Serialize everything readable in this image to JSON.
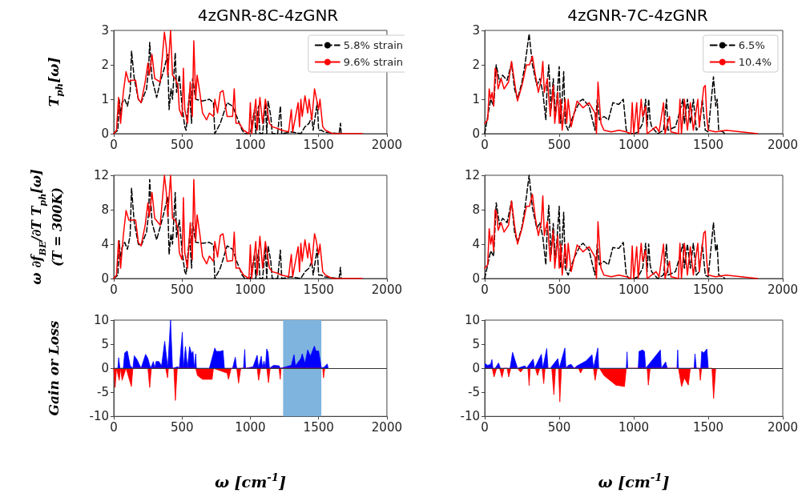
{
  "chart_data": [
    {
      "type": "line",
      "title": "4zGNR-8C-4zGNR",
      "ylabel": "T$_{ph}$[ω]",
      "xlim": [
        0,
        2000
      ],
      "xticks": [
        0,
        500,
        1000,
        1500,
        2000
      ],
      "ylim": [
        0,
        3
      ],
      "yticks": [
        0,
        1,
        2,
        3
      ],
      "legend": "top right",
      "series": [
        {
          "name": "5.8% strain",
          "color": "#000000",
          "line_style": "dashed",
          "x": [
            0,
            30,
            40,
            50,
            60,
            80,
            100,
            120,
            130,
            150,
            180,
            200,
            240,
            255,
            263,
            280,
            314,
            340,
            370,
            394,
            405,
            419,
            430,
            450,
            460,
            480,
            500,
            520,
            530,
            540,
            555,
            570,
            577,
            600,
            650,
            700,
            730,
            740,
            780,
            830,
            870,
            900,
            940,
            960,
            1000,
            1030,
            1040,
            1060,
            1070,
            1090,
            1110,
            1120,
            1130,
            1150,
            1160,
            1200,
            1220,
            1230,
            1300,
            1370,
            1400,
            1430,
            1450,
            1460,
            1490,
            1500,
            1520,
            1540,
            1650,
            1660,
            1665
          ],
          "values": [
            0,
            0.1,
            1.0,
            0.5,
            0.9,
            1.0,
            0.8,
            1.2,
            2.4,
            1.6,
            1.0,
            0.9,
            1.3,
            1.9,
            2.65,
            1.6,
            1.05,
            1.5,
            1.9,
            2.3,
            0.7,
            1.3,
            1.0,
            2.35,
            1.2,
            1.7,
            0.8,
            0.2,
            0.1,
            0.6,
            1.2,
            0.3,
            1.6,
            1.0,
            0.95,
            1.0,
            0.9,
            0,
            0.3,
            0.9,
            0.8,
            0.5,
            0.1,
            0,
            0,
            0.7,
            0,
            0.8,
            0,
            0,
            0.9,
            0,
            0.95,
            0.5,
            0,
            0,
            0.8,
            0,
            0.05,
            0,
            0.2,
            0.3,
            0.5,
            0.1,
            0.9,
            0.1,
            0.1,
            0.05,
            0,
            0.3,
            0
          ]
        },
        {
          "name": "9.6% strain",
          "color": "#ff0000",
          "line_style": "solid",
          "x": [
            0,
            20,
            35,
            50,
            70,
            90,
            110,
            130,
            160,
            180,
            200,
            230,
            250,
            260,
            280,
            300,
            340,
            371,
            385,
            395,
            416,
            430,
            450,
            470,
            480,
            500,
            510,
            520,
            540,
            560,
            575,
            586,
            600,
            610,
            630,
            650,
            680,
            700,
            730,
            740,
            760,
            780,
            800,
            830,
            870,
            882,
            895,
            920,
            950,
            990,
            1000,
            1010,
            1040,
            1050,
            1070,
            1090,
            1110,
            1140,
            1160,
            1200,
            1230,
            1280,
            1300,
            1310,
            1350,
            1360,
            1370,
            1380,
            1400,
            1420,
            1430,
            1450,
            1470,
            1480,
            1500,
            1510,
            1530,
            1550,
            1600,
            1820
          ],
          "values": [
            0,
            0.1,
            1.05,
            0.3,
            1.2,
            1.8,
            1.5,
            1.55,
            1.55,
            1.0,
            0.9,
            1.5,
            2.05,
            1.7,
            2.3,
            1.6,
            1.5,
            2.95,
            2.5,
            1.7,
            3.0,
            1.7,
            1.6,
            1.4,
            0.7,
            0.5,
            1.9,
            0.7,
            0.3,
            1.5,
            0.5,
            2.7,
            1.0,
            1.7,
            1.2,
            0.6,
            0.4,
            0.6,
            0.5,
            1.0,
            0.6,
            1.2,
            1.25,
            0.5,
            0.5,
            1.3,
            0.3,
            0.3,
            0.1,
            0,
            0.9,
            0,
            1.0,
            0.1,
            1.05,
            0.3,
            1.0,
            0.3,
            0.2,
            0.15,
            0.1,
            0.05,
            0.7,
            0.05,
            0.9,
            0.2,
            1.0,
            0.5,
            1.1,
            0.6,
            1.0,
            0.4,
            1.3,
            1.1,
            0.7,
            1.0,
            0.2,
            0.1,
            0,
            0
          ]
        }
      ]
    },
    {
      "type": "line",
      "title": "4zGNR-7C-4zGNR",
      "xlim": [
        0,
        2000
      ],
      "xticks": [
        0,
        500,
        1000,
        1500,
        2000
      ],
      "ylim": [
        0,
        3
      ],
      "yticks": [
        0,
        1,
        2,
        3
      ],
      "legend": "top right",
      "series": [
        {
          "name": "6.5%",
          "color": "#000000",
          "line_style": "dashed",
          "x": [
            0,
            20,
            40,
            60,
            77,
            100,
            120,
            150,
            180,
            200,
            220,
            250,
            270,
            298,
            320,
            350,
            370,
            390,
            410,
            420,
            430,
            445,
            460,
            475,
            500,
            510,
            530,
            540,
            560,
            600,
            640,
            660,
            700,
            740,
            755,
            770,
            800,
            830,
            860,
            900,
            930,
            950,
            970,
            1000,
            1030,
            1060,
            1080,
            1090,
            1100,
            1110,
            1120,
            1160,
            1200,
            1220,
            1230,
            1280,
            1300,
            1330,
            1340,
            1360,
            1380,
            1400,
            1420,
            1440,
            1460,
            1480,
            1500,
            1535,
            1550,
            1560,
            1570,
            1600,
            1610
          ],
          "values": [
            0,
            0.5,
            1.0,
            0.8,
            2.0,
            1.5,
            1.7,
            1.55,
            2.05,
            1.3,
            1.0,
            1.5,
            2.0,
            2.9,
            2.0,
            1.4,
            1.6,
            1.2,
            0.4,
            1.5,
            2.0,
            0.7,
            1.6,
            0.5,
            1.95,
            0.3,
            1.8,
            0.3,
            0.1,
            0.6,
            0.95,
            1.0,
            0.8,
            0.1,
            1.0,
            0.4,
            0.5,
            0.4,
            0.9,
            0.85,
            1.0,
            0.1,
            0,
            0,
            0.05,
            0.3,
            1.0,
            0.2,
            1.0,
            0.4,
            0.2,
            0,
            0.1,
            1.0,
            0.1,
            0.2,
            0.5,
            1.0,
            0.3,
            1.0,
            0.3,
            1.0,
            0.1,
            0.2,
            1.0,
            0.1,
            0.05,
            1.65,
            0.8,
            1.0,
            0.1,
            0.05,
            0
          ]
        },
        {
          "name": "10.4%",
          "color": "#ff0000",
          "line_style": "solid",
          "x": [
            0,
            20,
            30,
            40,
            50,
            60,
            70,
            80,
            90,
            110,
            130,
            160,
            180,
            200,
            220,
            250,
            280,
            300,
            320,
            340,
            360,
            380,
            390,
            400,
            420,
            440,
            460,
            470,
            490,
            500,
            510,
            520,
            540,
            550,
            560,
            580,
            620,
            660,
            700,
            740,
            750,
            760,
            780,
            800,
            850,
            900,
            950,
            980,
            990,
            1000,
            1020,
            1030,
            1050,
            1060,
            1080,
            1090,
            1150,
            1170,
            1200,
            1210,
            1240,
            1250,
            1300,
            1310,
            1320,
            1340,
            1360,
            1380,
            1400,
            1430,
            1440,
            1470,
            1480,
            1490,
            1500,
            1550,
            1620,
            1830
          ],
          "values": [
            0.3,
            0.4,
            1.3,
            1.0,
            1.2,
            0.8,
            1.9,
            1.8,
            1.3,
            1.6,
            1.3,
            1.5,
            2.1,
            1.5,
            0.95,
            1.4,
            2.0,
            2.0,
            2.25,
            1.7,
            1.2,
            1.6,
            2.1,
            1.2,
            1.6,
            0.5,
            1.4,
            0.3,
            1.2,
            0.3,
            1.0,
            0.1,
            1.0,
            0.3,
            1.0,
            0.2,
            0.95,
            0.75,
            0.9,
            0.6,
            0,
            1.5,
            0.3,
            0.1,
            0.05,
            0.1,
            0.05,
            0,
            0.9,
            0,
            0.9,
            0,
            1.0,
            0.5,
            0.8,
            0,
            0.2,
            0.05,
            0.9,
            0,
            0.5,
            0.05,
            0,
            1.0,
            0,
            1.0,
            0.1,
            0.9,
            0.1,
            1.0,
            0.2,
            1.35,
            1.4,
            0.5,
            0.1,
            0.05,
            0.1,
            0
          ]
        }
      ]
    },
    {
      "type": "line",
      "ylabel": "ω ∂f$_{BE}$/∂T T$_{ph}$[ω]\n(T = 300K)",
      "xlim": [
        0,
        2000
      ],
      "xticks": [
        0,
        500,
        1000,
        1500,
        2000
      ],
      "ylim": [
        0,
        12
      ],
      "yticks": [
        0,
        4,
        8,
        12
      ],
      "series": [
        {
          "color": "#000000",
          "line_style": "dashed",
          "x": [
            0,
            30,
            40,
            50,
            60,
            80,
            100,
            120,
            130,
            150,
            180,
            200,
            240,
            255,
            263,
            280,
            314,
            340,
            370,
            394,
            405,
            419,
            430,
            450,
            460,
            480,
            500,
            520,
            530,
            540,
            555,
            570,
            577,
            600,
            650,
            700,
            730,
            740,
            780,
            830,
            870,
            900,
            940,
            960,
            1000,
            1030,
            1040,
            1060,
            1070,
            1090,
            1110,
            1120,
            1130,
            1150,
            1160,
            1200,
            1220,
            1230,
            1300,
            1370,
            1400,
            1430,
            1450,
            1460,
            1490,
            1500,
            1520,
            1540,
            1650,
            1660,
            1665
          ],
          "values": [
            0,
            0.4,
            4.4,
            2,
            3.6,
            4.2,
            3.4,
            5,
            10.5,
            6.5,
            4,
            3.8,
            5.4,
            7.5,
            11.5,
            6.5,
            4.5,
            6,
            7.8,
            9.5,
            2.8,
            5.2,
            4,
            10,
            4.8,
            6.8,
            3.2,
            0.8,
            0.5,
            2.4,
            4.8,
            1.2,
            6.5,
            4.2,
            4.1,
            4.2,
            3.9,
            0,
            1.2,
            3.8,
            3.4,
            2,
            0.4,
            0,
            0,
            2.8,
            0,
            3.3,
            0,
            0,
            3.7,
            0,
            3.8,
            2,
            0,
            0,
            3.3,
            0,
            0.2,
            0,
            0.8,
            1.2,
            2,
            0.4,
            3.5,
            0.4,
            0.4,
            0.2,
            0,
            1.3,
            0
          ]
        },
        {
          "color": "#ff0000",
          "line_style": "solid",
          "x": [
            0,
            20,
            35,
            50,
            70,
            90,
            110,
            130,
            160,
            180,
            200,
            230,
            250,
            260,
            280,
            300,
            340,
            371,
            385,
            395,
            416,
            430,
            450,
            470,
            480,
            500,
            510,
            520,
            540,
            560,
            575,
            586,
            600,
            610,
            630,
            650,
            680,
            700,
            730,
            740,
            760,
            780,
            800,
            830,
            870,
            882,
            895,
            920,
            950,
            990,
            1000,
            1010,
            1040,
            1050,
            1070,
            1090,
            1110,
            1140,
            1160,
            1200,
            1230,
            1280,
            1300,
            1310,
            1350,
            1360,
            1370,
            1380,
            1400,
            1420,
            1430,
            1450,
            1470,
            1480,
            1500,
            1510,
            1530,
            1550,
            1600,
            1820
          ],
          "values": [
            0,
            0.4,
            4.4,
            1.2,
            5,
            7.9,
            6.8,
            6.8,
            6.8,
            4.2,
            3.8,
            6.2,
            8.8,
            7.2,
            10,
            7,
            6.2,
            12,
            10,
            7.2,
            12,
            7,
            6.8,
            5.8,
            3,
            2.2,
            9.4,
            3,
            1.2,
            6.5,
            2.2,
            11.5,
            4.3,
            7.4,
            5.2,
            2.6,
            1.7,
            2.6,
            2,
            4.3,
            2.5,
            5,
            5.2,
            2,
            2.1,
            5.4,
            1.2,
            1.2,
            0.4,
            0,
            3.9,
            0,
            4.3,
            0.4,
            4.9,
            1.2,
            4.3,
            1.2,
            0.8,
            0.6,
            0.4,
            0.2,
            2.8,
            0.2,
            3.7,
            0.8,
            4.1,
            2,
            4.5,
            2.4,
            4.1,
            1.6,
            5.2,
            4.6,
            2.8,
            4,
            0.8,
            0.4,
            0,
            0
          ]
        }
      ]
    },
    {
      "type": "line",
      "xlim": [
        0,
        2000
      ],
      "xticks": [
        0,
        500,
        1000,
        1500,
        2000
      ],
      "ylim": [
        0,
        12
      ],
      "yticks": [
        0,
        4,
        8,
        12
      ],
      "series": [
        {
          "color": "#000000",
          "line_style": "dashed",
          "x": [
            0,
            20,
            40,
            60,
            77,
            100,
            120,
            150,
            180,
            200,
            220,
            250,
            270,
            298,
            320,
            350,
            370,
            390,
            410,
            420,
            430,
            445,
            460,
            475,
            500,
            510,
            530,
            540,
            560,
            600,
            640,
            660,
            700,
            740,
            755,
            770,
            800,
            830,
            860,
            900,
            930,
            950,
            970,
            1000,
            1030,
            1060,
            1080,
            1090,
            1100,
            1110,
            1120,
            1160,
            1200,
            1220,
            1230,
            1280,
            1300,
            1330,
            1340,
            1360,
            1380,
            1400,
            1420,
            1440,
            1460,
            1480,
            1500,
            1535,
            1550,
            1560,
            1570,
            1600,
            1610
          ],
          "values": [
            0,
            1.6,
            3.2,
            2.6,
            8.8,
            6.2,
            7,
            6.5,
            9,
            5.4,
            4.2,
            6,
            8.2,
            12,
            8.2,
            5.8,
            6.5,
            4.8,
            1.6,
            6,
            8.5,
            2.8,
            6.4,
            2,
            8.4,
            1.2,
            7.7,
            1.2,
            0.4,
            2.4,
            3.8,
            4.1,
            3.3,
            0.4,
            4,
            1.6,
            2,
            1.6,
            3.6,
            3.5,
            4.2,
            0.4,
            0,
            0,
            0.2,
            1.2,
            4.1,
            0.8,
            4,
            1.6,
            0.8,
            0,
            0.4,
            4,
            0.4,
            0.8,
            2,
            4,
            1.2,
            4,
            1.2,
            4.1,
            0.4,
            0.8,
            4,
            0.4,
            0.2,
            6.5,
            3.2,
            4,
            0.4,
            0.2,
            0
          ]
        },
        {
          "color": "#ff0000",
          "line_style": "solid",
          "x": [
            0,
            20,
            30,
            40,
            50,
            60,
            70,
            80,
            90,
            110,
            130,
            160,
            180,
            200,
            220,
            250,
            280,
            300,
            320,
            340,
            360,
            380,
            390,
            400,
            420,
            440,
            460,
            470,
            490,
            500,
            510,
            520,
            540,
            550,
            560,
            580,
            620,
            660,
            700,
            740,
            750,
            760,
            780,
            800,
            850,
            900,
            950,
            980,
            990,
            1000,
            1020,
            1030,
            1050,
            1060,
            1080,
            1090,
            1150,
            1170,
            1200,
            1210,
            1240,
            1250,
            1300,
            1310,
            1320,
            1340,
            1360,
            1380,
            1400,
            1430,
            1440,
            1470,
            1480,
            1490,
            1500,
            1550,
            1620,
            1830
          ],
          "values": [
            1.2,
            1.6,
            5.8,
            4,
            5,
            3.2,
            8,
            7.6,
            5.6,
            6.5,
            5.4,
            6.2,
            9,
            6.2,
            4,
            5.8,
            8.4,
            8.4,
            9.8,
            7,
            5,
            6.6,
            9.6,
            5,
            6.6,
            2,
            5.6,
            1.2,
            5,
            1.2,
            4,
            0.4,
            4,
            1.2,
            4.1,
            0.8,
            3.9,
            3.1,
            3.7,
            2.5,
            0,
            6.6,
            1.2,
            0.4,
            0.2,
            0.4,
            0.2,
            0,
            3.8,
            0,
            3.7,
            0,
            4.1,
            2,
            3.3,
            0,
            0.8,
            0.2,
            4,
            0,
            2,
            0.2,
            0,
            4.1,
            0,
            4.1,
            0.4,
            3.7,
            0.4,
            4.1,
            0.8,
            5.3,
            5.5,
            2,
            0.4,
            0.2,
            0.4,
            0
          ]
        }
      ]
    },
    {
      "type": "area",
      "ylabel": "Gain or Loss",
      "xlabel": "ω [cm$^{-1}$]",
      "xlim": [
        0,
        2000
      ],
      "xticks": [
        0,
        500,
        1000,
        1500,
        2000
      ],
      "ylim": [
        -10,
        10
      ],
      "yticks": [
        -10,
        -5,
        0,
        5,
        10
      ],
      "ref_lines": [
        {
          "axis": "y",
          "value": 0,
          "color": "#333333"
        }
      ],
      "bands": [
        {
          "axis": "x",
          "from": 1240,
          "to": 1520,
          "color": "#7fb4de"
        }
      ],
      "series": [
        {
          "color": "#0000ff",
          "x": [
            0,
            30,
            36,
            45,
            70,
            80,
            99,
            120,
            140,
            150,
            170,
            200,
            233,
            250,
            270,
            290,
            300,
            310,
            330,
            350,
            373,
            395,
            416,
            430,
            470,
            480,
            502,
            510,
            525,
            540,
            555,
            570,
            580,
            590,
            600,
            605,
            700,
            740,
            750,
            780,
            800,
            810,
            870,
            890,
            900,
            950,
            959,
            965,
            1020,
            1050,
            1060,
            1080,
            1090,
            1100,
            1110,
            1120,
            1130,
            1140,
            1170,
            1210,
            1220,
            1300,
            1320,
            1330,
            1370,
            1380,
            1400,
            1420,
            1440,
            1469,
            1480,
            1500,
            1520,
            1540,
            1563,
            1570
          ],
          "values": [
            0,
            0,
            2.2,
            0,
            0,
            3.2,
            3.6,
            0.5,
            0,
            2.6,
            1.8,
            0,
            2.9,
            2,
            0,
            1.4,
            0,
            1.4,
            1.4,
            0.5,
            5.6,
            0,
            10,
            0,
            0.3,
            0,
            7.5,
            0,
            4.5,
            0,
            4.5,
            3,
            3.5,
            0,
            3,
            0,
            0,
            4.2,
            3.5,
            3.5,
            3.7,
            0,
            0,
            2.3,
            0,
            0,
            3.9,
            0,
            0.3,
            2.7,
            0,
            2.5,
            0,
            1.5,
            0,
            4,
            3.3,
            0,
            0.6,
            0.5,
            0,
            0.6,
            2.8,
            0.5,
            2,
            3,
            1,
            3.8,
            2.5,
            4.6,
            3.6,
            3.6,
            0.1,
            0.2,
            0.9,
            0
          ]
        },
        {
          "color": "#ff0000",
          "x": [
            0,
            10,
            20,
            40,
            50,
            61,
            90,
            129,
            140,
            250,
            263,
            275,
            380,
            394,
            400,
            440,
            451,
            465,
            600,
            613,
            650,
            720,
            730,
            830,
            840,
            860,
            900,
            914,
            930,
            1050,
            1061,
            1075,
            1120,
            1133,
            1145,
            1210,
            1219,
            1225,
            1530,
            1536,
            1545
          ],
          "values": [
            0,
            -4,
            0,
            -2.5,
            0,
            -2.5,
            0,
            -3.8,
            0,
            0,
            -4,
            0,
            0,
            -2,
            0,
            0,
            -6.7,
            0,
            0,
            -1.5,
            -2.3,
            -2.3,
            0,
            -1,
            -2.3,
            0,
            0,
            -3.1,
            0,
            0,
            -2.5,
            0,
            0,
            -3,
            0,
            0,
            -2.3,
            0,
            0,
            -2,
            0
          ]
        }
      ]
    },
    {
      "type": "area",
      "xlabel": "ω [cm$^{-1}$]",
      "xlim": [
        0,
        2000
      ],
      "xticks": [
        0,
        500,
        1000,
        1500,
        2000
      ],
      "ylim": [
        -10,
        10
      ],
      "yticks": [
        -10,
        -5,
        0,
        5,
        10
      ],
      "ref_lines": [
        {
          "axis": "y",
          "value": 0,
          "color": "#333333"
        }
      ],
      "series": [
        {
          "color": "#0000ff",
          "x": [
            0,
            20,
            40,
            48,
            55,
            70,
            93,
            105,
            170,
            187,
            200,
            220,
            270,
            280,
            325,
            335,
            380,
            390,
            416,
            425,
            440,
            491,
            500,
            538,
            545,
            560,
            580,
            600,
            620,
            680,
            720,
            730,
            759,
            765,
            950,
            955,
            960,
            1030,
            1036,
            1060,
            1072,
            1080,
            1179,
            1185,
            1214,
            1225,
            1290,
            1295,
            1300,
            1405,
            1411,
            1420,
            1450,
            1456,
            1470,
            1491,
            1500
          ],
          "values": [
            1.0,
            0.6,
            0.8,
            1.8,
            0,
            0,
            1.1,
            0,
            0,
            3.3,
            2,
            0,
            0.5,
            0,
            1.9,
            0,
            2.9,
            0,
            4.1,
            0,
            0,
            2,
            0,
            4.2,
            0,
            0.6,
            0.8,
            0,
            0.5,
            1.5,
            2.8,
            0,
            4.2,
            0,
            0,
            3.4,
            0,
            0,
            3.5,
            3.8,
            3.5,
            0,
            3.8,
            0,
            1.3,
            0,
            0,
            3.8,
            0,
            0,
            3,
            0,
            0,
            3.5,
            3.2,
            4,
            0
          ]
        },
        {
          "color": "#ff0000",
          "x": [
            0,
            50,
            63,
            80,
            100,
            116,
            130,
            150,
            161,
            175,
            220,
            241,
            260,
            290,
            298,
            305,
            340,
            354,
            370,
            385,
            396,
            405,
            450,
            464,
            475,
            495,
            504,
            515,
            630,
            643,
            660,
            730,
            741,
            755,
            770,
            800,
            880,
            938,
            950,
            1090,
            1098,
            1110,
            1300,
            1321,
            1340,
            1366,
            1380,
            1440,
            1447,
            1455,
            1525,
            1536,
            1550
          ],
          "values": [
            0,
            0,
            -1.8,
            0,
            0,
            -1.9,
            0,
            0,
            -1.8,
            0,
            0,
            -0.8,
            0,
            0,
            -3.6,
            0,
            0,
            -1.5,
            0,
            0,
            -3.2,
            0,
            0,
            -5.5,
            0,
            0,
            -7,
            0,
            0,
            -1,
            0,
            0,
            -2.5,
            0,
            0,
            -1.5,
            -3.5,
            -3.8,
            0,
            0,
            -3.5,
            0,
            0,
            -3.8,
            -2,
            -3.5,
            0,
            0,
            -2.5,
            0,
            0,
            -6.3,
            0
          ]
        }
      ]
    }
  ]
}
